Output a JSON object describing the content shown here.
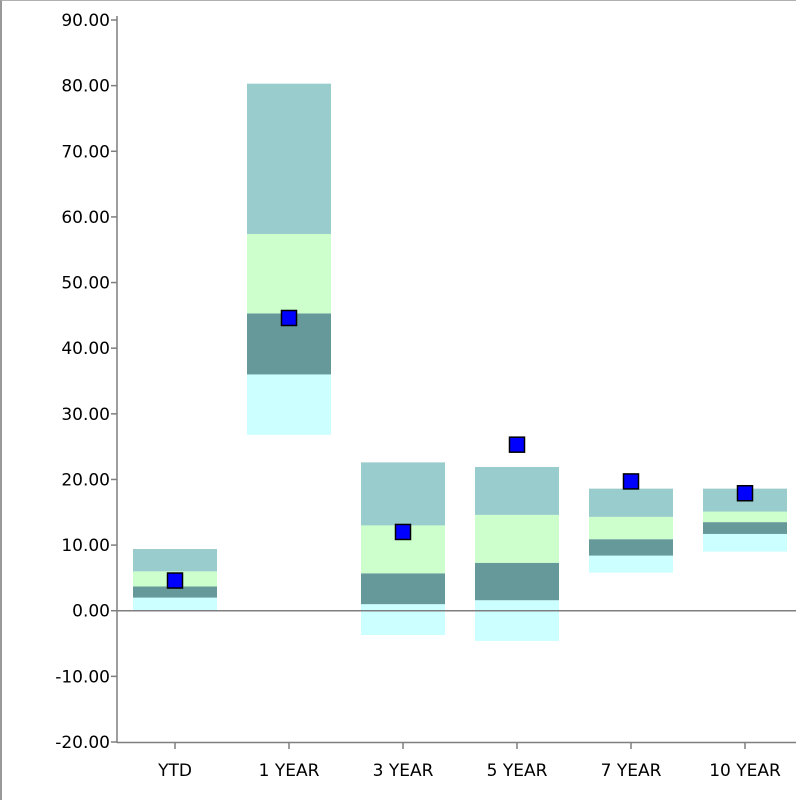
{
  "chart_data": {
    "type": "floating-bar",
    "title": "",
    "xlabel": "",
    "ylabel": "",
    "ylim": [
      -20,
      90
    ],
    "yticks": [
      "90.00",
      "80.00",
      "70.00",
      "60.00",
      "50.00",
      "40.00",
      "30.00",
      "20.00",
      "10.00",
      "0.00",
      "-10.00",
      "-20.00"
    ],
    "categories": [
      "YTD",
      "1 YEAR",
      "3 YEAR",
      "5 YEAR",
      "7 YEAR",
      "10 YEAR"
    ],
    "band_colors": [
      "#ccffff",
      "#669999",
      "#ccffcc",
      "#99cccc"
    ],
    "marker_color": "#0000ff",
    "bands": [
      [
        0.0,
        2.0,
        3.7,
        6.0,
        9.4
      ],
      [
        26.8,
        36.0,
        45.3,
        57.4,
        80.3
      ],
      [
        -3.7,
        1.0,
        5.7,
        13.0,
        22.6
      ],
      [
        -4.6,
        1.6,
        7.3,
        14.6,
        21.9
      ],
      [
        5.8,
        8.4,
        10.9,
        14.3,
        18.6
      ],
      [
        9.0,
        11.7,
        13.5,
        15.1,
        18.6
      ]
    ],
    "markers": [
      4.6,
      44.6,
      12.0,
      25.3,
      19.7,
      17.9
    ],
    "grid": false,
    "legend": "none"
  }
}
